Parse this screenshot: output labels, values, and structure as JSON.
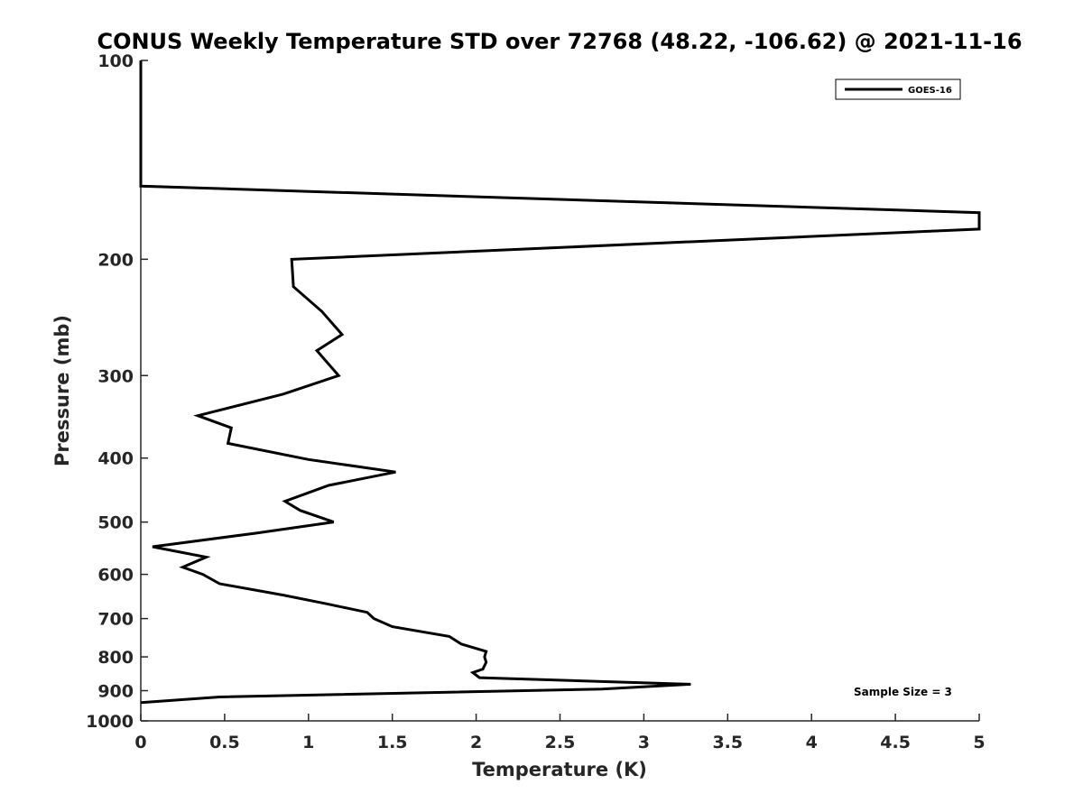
{
  "chart_data": {
    "type": "line",
    "title": "CONUS Weekly Temperature STD over 72768 (48.22, -106.62) @ 2021-11-16",
    "xlabel": "Temperature (K)",
    "ylabel": "Pressure (mb)",
    "xlim": [
      0,
      5
    ],
    "ylim": [
      100,
      1000
    ],
    "yscale": "log",
    "yreverse": true,
    "xticks": [
      0,
      0.5,
      1,
      1.5,
      2,
      2.5,
      3,
      3.5,
      4,
      4.5,
      5
    ],
    "xtick_labels": [
      "0",
      "0.5",
      "1",
      "1.5",
      "2",
      "2.5",
      "3",
      "3.5",
      "4",
      "4.5",
      "5"
    ],
    "yticks": [
      100,
      200,
      300,
      400,
      500,
      600,
      700,
      800,
      900,
      1000
    ],
    "ytick_labels": [
      "100",
      "200",
      "300",
      "400",
      "500",
      "600",
      "700",
      "800",
      "900",
      "1000"
    ],
    "grid": false,
    "legend_position": "top-right",
    "annotation": "Sample Size = 3",
    "series": [
      {
        "name": "GOES-16",
        "color": "#000000",
        "points": [
          [
            0,
            100
          ],
          [
            0,
            155
          ],
          [
            5,
            170
          ],
          [
            5,
            180
          ],
          [
            0.9,
            200
          ],
          [
            0.91,
            220
          ],
          [
            1.08,
            240
          ],
          [
            1.2,
            260
          ],
          [
            1.05,
            275
          ],
          [
            1.18,
            300
          ],
          [
            0.85,
            320
          ],
          [
            0.34,
            345
          ],
          [
            0.54,
            360
          ],
          [
            0.52,
            380
          ],
          [
            1.0,
            402
          ],
          [
            1.52,
            420
          ],
          [
            1.12,
            440
          ],
          [
            0.86,
            465
          ],
          [
            0.95,
            480
          ],
          [
            1.15,
            500
          ],
          [
            0.68,
            520
          ],
          [
            0.07,
            545
          ],
          [
            0.39,
            565
          ],
          [
            0.25,
            585
          ],
          [
            0.37,
            600
          ],
          [
            0.47,
            620
          ],
          [
            0.85,
            645
          ],
          [
            1.11,
            665
          ],
          [
            1.35,
            685
          ],
          [
            1.39,
            700
          ],
          [
            1.5,
            720
          ],
          [
            1.84,
            745
          ],
          [
            1.91,
            765
          ],
          [
            2.06,
            785
          ],
          [
            2.05,
            800
          ],
          [
            2.06,
            815
          ],
          [
            2.04,
            835
          ],
          [
            1.98,
            845
          ],
          [
            2.02,
            860
          ],
          [
            3.28,
            880
          ],
          [
            2.75,
            895
          ],
          [
            0.47,
            920
          ],
          [
            0,
            938
          ]
        ]
      }
    ]
  }
}
